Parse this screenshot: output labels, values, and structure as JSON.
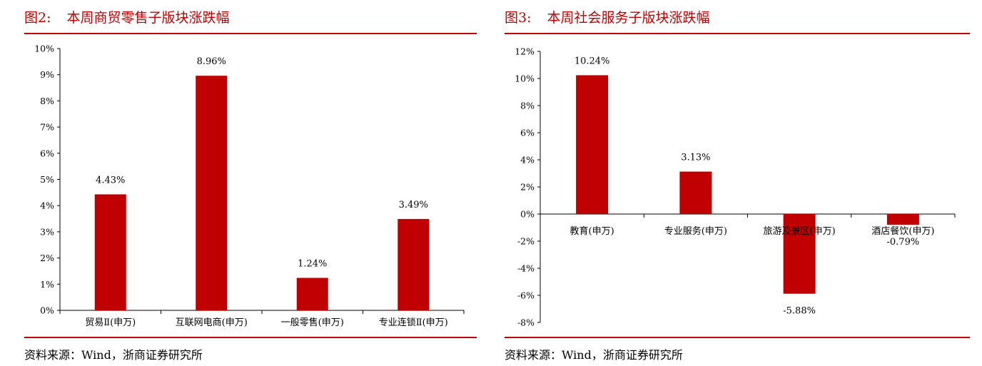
{
  "chart_data": [
    {
      "type": "bar",
      "figure_number": "图2:",
      "title": "本周商贸零售子版块涨跌幅",
      "categories": [
        "贸易Ⅱ(申万)",
        "互联网电商(申万)",
        "一般零售(申万)",
        "专业连锁Ⅱ(申万)"
      ],
      "values": [
        4.43,
        8.96,
        1.24,
        3.49
      ],
      "data_labels": [
        "4.43%",
        "8.96%",
        "1.24%",
        "3.49%"
      ],
      "y_ticks": [
        0,
        1,
        2,
        3,
        4,
        5,
        6,
        7,
        8,
        9,
        10
      ],
      "y_tick_labels": [
        "0%",
        "1%",
        "2%",
        "3%",
        "4%",
        "5%",
        "6%",
        "7%",
        "8%",
        "9%",
        "10%"
      ],
      "ylim": [
        0,
        10
      ],
      "xlabel": "",
      "ylabel": "",
      "grid": false,
      "legend": "none",
      "bar_color": "#c00000",
      "source": "资料来源：Wind，浙商证券研究所"
    },
    {
      "type": "bar",
      "figure_number": "图3:",
      "title": "本周社会服务子版块涨跌幅",
      "categories": [
        "教育(申万)",
        "专业服务(申万)",
        "旅游及景区(申万)",
        "酒店餐饮(申万)"
      ],
      "values": [
        10.24,
        3.13,
        -5.88,
        -0.79
      ],
      "data_labels": [
        "10.24%",
        "3.13%",
        "-5.88%",
        "-0.79%"
      ],
      "y_ticks": [
        -8,
        -6,
        -4,
        -2,
        0,
        2,
        4,
        6,
        8,
        10,
        12
      ],
      "y_tick_labels": [
        "-8%",
        "-6%",
        "-4%",
        "-2%",
        "0%",
        "2%",
        "4%",
        "6%",
        "8%",
        "10%",
        "12%"
      ],
      "ylim": [
        -8,
        12
      ],
      "xlabel": "",
      "ylabel": "",
      "grid": false,
      "legend": "none",
      "bar_color": "#c00000",
      "source": "资料来源：Wind，浙商证券研究所"
    }
  ]
}
